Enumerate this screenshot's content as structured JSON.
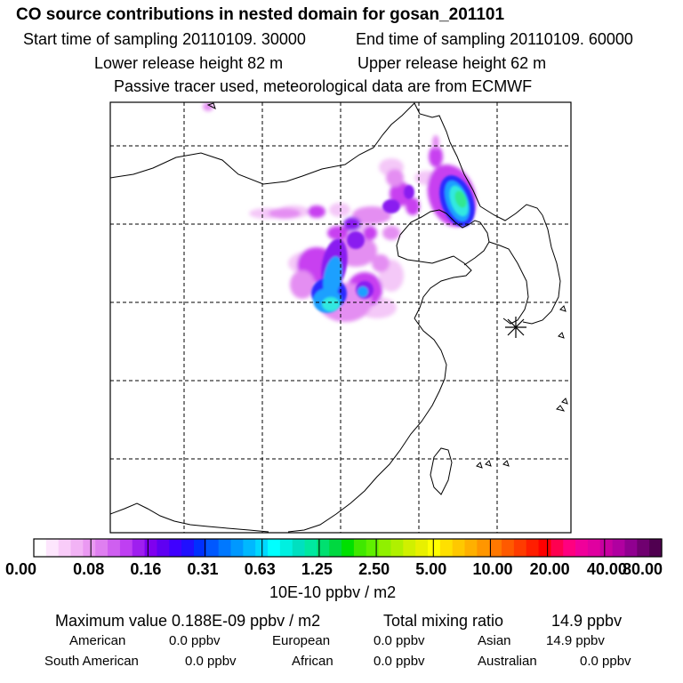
{
  "header": {
    "title": "CO  source contributions in nested domain for gosan_201101",
    "start_time": "Start time of sampling 20110109. 30000",
    "end_time": "End time of sampling 20110109. 60000",
    "lower_height": "Lower release height   82 m",
    "upper_height": "Upper release height   62 m",
    "tracer_note": "Passive tracer used, meteorological data are from ECMWF"
  },
  "colorbar": {
    "ticks": [
      "0.00",
      "0.08",
      "0.16",
      "0.31",
      "0.63",
      "1.25",
      "2.50",
      "5.00",
      "10.00",
      "20.00",
      "40.00",
      "80.00"
    ],
    "unit": "10E-10 ppbv / m2",
    "colors": [
      "#ffffff",
      "#fde6fd",
      "#f9ccf9",
      "#f2b3f5",
      "#ea99f2",
      "#df7ff0",
      "#cf5ff0",
      "#bf3ff2",
      "#9f1fef",
      "#7f00ef",
      "#5f00f2",
      "#3f00ff",
      "#2010ff",
      "#0030ff",
      "#0058ff",
      "#0078ff",
      "#0098ff",
      "#00b8ff",
      "#00d8ff",
      "#00ffff",
      "#00f0e0",
      "#00e0c0",
      "#00e8a0",
      "#00e070",
      "#00d840",
      "#00e000",
      "#40e800",
      "#60f000",
      "#90f000",
      "#b0f000",
      "#d0f000",
      "#e8f000",
      "#ffff00",
      "#ffe000",
      "#ffc800",
      "#ffb000",
      "#ff9600",
      "#ff7800",
      "#ff5a00",
      "#ff3c00",
      "#ff1e00",
      "#ff0000",
      "#ff0050",
      "#ff0080",
      "#f0009a",
      "#e000a0",
      "#c800a0",
      "#b000a0",
      "#900090",
      "#700070",
      "#500050"
    ]
  },
  "stats": {
    "max_label": "Maximum value  0.188E-09 ppbv / m2",
    "total_label": "Total mixing ratio",
    "total_value": "14.9 ppbv",
    "regions": [
      {
        "name": "American",
        "value": "0.0 ppbv"
      },
      {
        "name": "European",
        "value": "0.0 ppbv"
      },
      {
        "name": "Asian",
        "value": "14.9 ppbv"
      },
      {
        "name": "South American",
        "value": "0.0 ppbv"
      },
      {
        "name": "African",
        "value": "0.0 ppbv"
      },
      {
        "name": "Australian",
        "value": "0.0 ppbv"
      }
    ]
  },
  "map": {
    "receptor_marker": "gosan-receptor-marker",
    "plume_colors": {
      "faint": "#f4c8f8",
      "light": "#e48ef2",
      "mid": "#c840f0",
      "violet": "#8a1ef0",
      "blue": "#2a2aff",
      "sky": "#1aa0ff",
      "cyan": "#30e8e0",
      "green": "#30e890"
    }
  }
}
